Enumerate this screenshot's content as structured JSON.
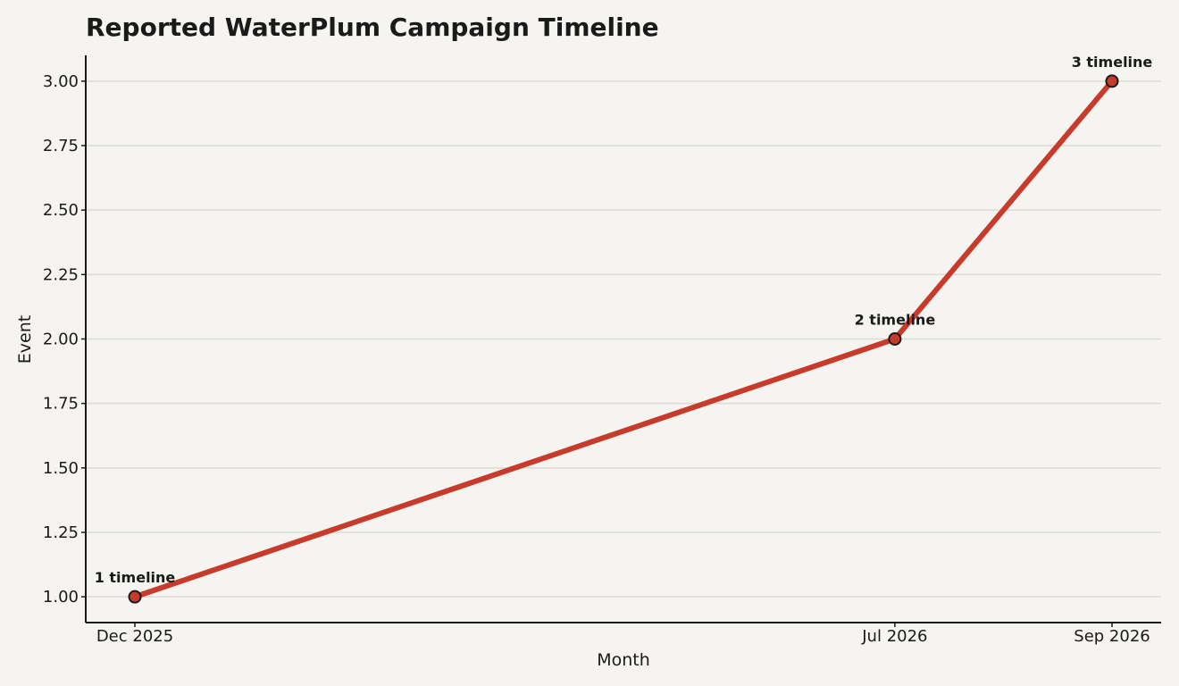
{
  "chart_data": {
    "type": "line",
    "title": "Reported WaterPlum Campaign Timeline",
    "xlabel": "Month",
    "ylabel": "Event",
    "x": [
      "Dec 2025",
      "Jul 2026",
      "Sep 2026"
    ],
    "series": [
      {
        "values": [
          1,
          2,
          3
        ],
        "point_labels": [
          "1 timeline",
          "2 timeline",
          "3 timeline"
        ]
      }
    ],
    "x_tick_labels": [
      "Dec 2025",
      "Jul 2026",
      "Sep 2026"
    ],
    "y_ticks": [
      1.0,
      1.25,
      1.5,
      1.75,
      2.0,
      2.25,
      2.5,
      2.75,
      3.0
    ],
    "y_tick_labels": [
      "1.00",
      "1.25",
      "1.50",
      "1.75",
      "2.00",
      "2.25",
      "2.50",
      "2.75",
      "3.00"
    ],
    "ylim": [
      0.9,
      3.1
    ],
    "grid": "horizontal",
    "legend": "none",
    "line_color": "#c83a2a",
    "marker_color": "#c83a2a",
    "marker_edge_color": "#1a1a1a",
    "grid_color": "#dcdbd6",
    "background_color": "#f5f4f0"
  }
}
